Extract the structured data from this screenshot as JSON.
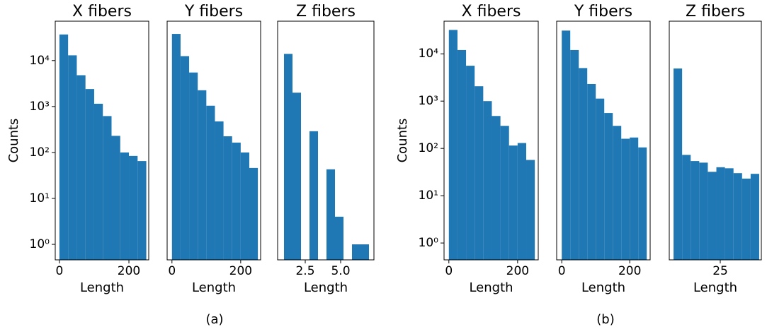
{
  "captions": [
    "(a)",
    "(b)"
  ],
  "chart_data": [
    {
      "type": "histogram",
      "title": "X fibers",
      "xlabel": "Length",
      "ylabel": "Counts",
      "log_y": true,
      "color": "#1f77b4",
      "bins": [
        0,
        25,
        50,
        75,
        100,
        125,
        150,
        175,
        200,
        225,
        250
      ],
      "values": [
        37000,
        13000,
        4800,
        2400,
        1150,
        620,
        230,
        100,
        84,
        65
      ],
      "xlim": [
        -12,
        257
      ],
      "xticks": [
        0,
        200
      ],
      "ylim": [
        0.46,
        72000
      ],
      "yticks": [
        {
          "value": 1,
          "label": "10⁰"
        },
        {
          "value": 10,
          "label": "10¹"
        },
        {
          "value": 100,
          "label": "10²"
        },
        {
          "value": 1000,
          "label": "10³"
        },
        {
          "value": 10000,
          "label": "10⁴"
        }
      ]
    },
    {
      "type": "histogram",
      "title": "Y fibers",
      "xlabel": "Length",
      "log_y": true,
      "color": "#1f77b4",
      "bins": [
        0,
        25,
        50,
        75,
        100,
        125,
        150,
        175,
        200,
        225,
        250
      ],
      "values": [
        38000,
        12500,
        5500,
        2260,
        1040,
        475,
        225,
        164,
        100,
        46
      ],
      "xlim": [
        -14,
        258
      ],
      "xticks": [
        0,
        200
      ],
      "ylim": [
        0.46,
        72000
      ]
    },
    {
      "type": "histogram",
      "title": "Z fibers",
      "xlabel": "Length",
      "log_y": true,
      "color": "#1f77b4",
      "bins": [
        1,
        1.6,
        2.2,
        2.8,
        3.4,
        4,
        4.6,
        5.2,
        5.8,
        6.4,
        7
      ],
      "values": [
        14000,
        2000,
        0,
        290,
        0,
        43,
        4,
        0,
        1,
        1
      ],
      "xlim": [
        0.55,
        7.35
      ],
      "xticks": [
        2.5,
        {
          "value": 5,
          "label": "5.0"
        }
      ],
      "ylim": [
        0.46,
        72000
      ]
    },
    {
      "type": "histogram",
      "title": "X fibers",
      "xlabel": "Length",
      "ylabel": "Counts",
      "log_y": true,
      "color": "#1f77b4",
      "bins": [
        0,
        25,
        50,
        75,
        100,
        125,
        150,
        175,
        200,
        225,
        250
      ],
      "values": [
        32000,
        12000,
        5600,
        2060,
        1000,
        485,
        300,
        115,
        130,
        57
      ],
      "xlim": [
        -14,
        260
      ],
      "xticks": [
        0,
        200
      ],
      "ylim": [
        0.44,
        49000
      ],
      "yticks": [
        {
          "value": 1,
          "label": "10⁰"
        },
        {
          "value": 10,
          "label": "10¹"
        },
        {
          "value": 100,
          "label": "10²"
        },
        {
          "value": 1000,
          "label": "10³"
        },
        {
          "value": 10000,
          "label": "10⁴"
        }
      ]
    },
    {
      "type": "histogram",
      "title": "Y fibers",
      "xlabel": "Length",
      "log_y": true,
      "color": "#1f77b4",
      "bins": [
        0,
        25,
        50,
        75,
        100,
        125,
        150,
        175,
        200,
        225,
        250
      ],
      "values": [
        31000,
        12000,
        5000,
        2300,
        1130,
        560,
        300,
        160,
        170,
        105
      ],
      "xlim": [
        -15,
        260
      ],
      "xticks": [
        0,
        200
      ],
      "ylim": [
        0.44,
        49000
      ]
    },
    {
      "type": "histogram",
      "title": "Z fibers",
      "xlabel": "Length",
      "log_y": true,
      "color": "#1f77b4",
      "bins": [
        1,
        5.4,
        9.8,
        14.2,
        18.6,
        23,
        27.4,
        31.8,
        36.2,
        40.6,
        45
      ],
      "values": [
        4900,
        73,
        54,
        50,
        32,
        40,
        38,
        30,
        23,
        29
      ],
      "xlim": [
        -1.2,
        46.1
      ],
      "xticks": [
        25
      ],
      "ylim": [
        0.44,
        49000
      ]
    }
  ]
}
